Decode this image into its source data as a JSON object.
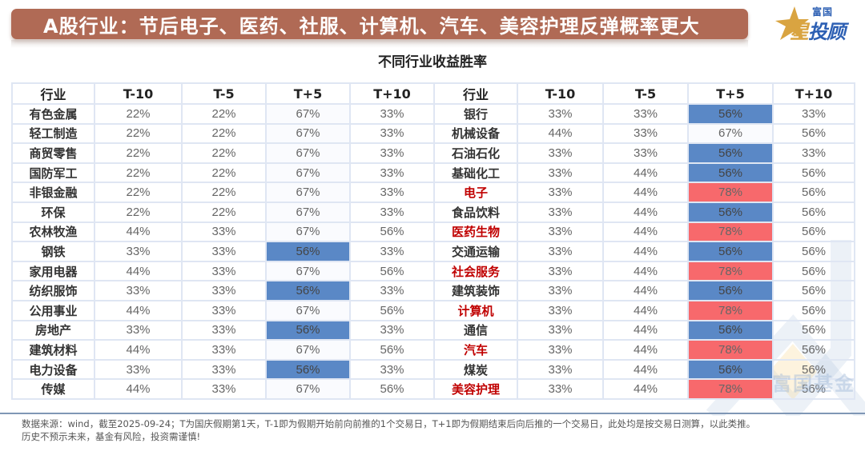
{
  "banner": {
    "title": "A股行业：节后电子、医药、社服、计算机、汽车、美容护理反弹概率更大"
  },
  "logo": {
    "top": "富国",
    "main_gold": "星",
    "main_blue": "投顾"
  },
  "watermark": {
    "text": "富国基金"
  },
  "colors": {
    "banner": "#b06a55",
    "blue_cell": "#5a88c6",
    "red_cell": "#f7696c",
    "highlight_text": "#c00000",
    "logo_blue": "#2c5fb3",
    "logo_gold": "#d9a441"
  },
  "footer": {
    "line1": "数据来源：wind，截至2025-09-24；T为国庆假期第1天，T-1即为假期开始前向前推的1个交易日，T+1即为假期结束后向后推的一个交易日，此处均是按交易日测算，以此类推。",
    "line2": "历史不预示未来，基金有风险，投资需谨慎!"
  },
  "chart_data": {
    "type": "table",
    "title": "不同行业收益胜率",
    "columns": [
      "行业",
      "T-10",
      "T-5",
      "T+5",
      "T+10"
    ],
    "legend": {
      "blue": "T+5 = 56%",
      "red": "T+5 = 78% (highlighted industries)"
    },
    "left": [
      {
        "industry": "有色金属",
        "values": [
          "22%",
          "22%",
          "67%",
          "33%"
        ],
        "t5": "light"
      },
      {
        "industry": "轻工制造",
        "values": [
          "22%",
          "22%",
          "67%",
          "33%"
        ],
        "t5": "light"
      },
      {
        "industry": "商贸零售",
        "values": [
          "22%",
          "22%",
          "67%",
          "33%"
        ],
        "t5": "light"
      },
      {
        "industry": "国防军工",
        "values": [
          "22%",
          "22%",
          "67%",
          "33%"
        ],
        "t5": "light"
      },
      {
        "industry": "非银金融",
        "values": [
          "22%",
          "22%",
          "67%",
          "33%"
        ],
        "t5": "light"
      },
      {
        "industry": "环保",
        "values": [
          "22%",
          "22%",
          "67%",
          "33%"
        ],
        "t5": "light"
      },
      {
        "industry": "农林牧渔",
        "values": [
          "44%",
          "33%",
          "67%",
          "56%"
        ],
        "t5": "light"
      },
      {
        "industry": "钢铁",
        "values": [
          "33%",
          "33%",
          "56%",
          "33%"
        ],
        "t5": "blue"
      },
      {
        "industry": "家用电器",
        "values": [
          "44%",
          "33%",
          "67%",
          "56%"
        ],
        "t5": "light"
      },
      {
        "industry": "纺织服饰",
        "values": [
          "33%",
          "33%",
          "56%",
          "33%"
        ],
        "t5": "blue"
      },
      {
        "industry": "公用事业",
        "values": [
          "44%",
          "33%",
          "67%",
          "56%"
        ],
        "t5": "light"
      },
      {
        "industry": "房地产",
        "values": [
          "33%",
          "33%",
          "56%",
          "33%"
        ],
        "t5": "blue"
      },
      {
        "industry": "建筑材料",
        "values": [
          "44%",
          "33%",
          "67%",
          "56%"
        ],
        "t5": "light"
      },
      {
        "industry": "电力设备",
        "values": [
          "33%",
          "33%",
          "56%",
          "33%"
        ],
        "t5": "blue"
      },
      {
        "industry": "传媒",
        "values": [
          "44%",
          "33%",
          "67%",
          "56%"
        ],
        "t5": "light"
      }
    ],
    "right": [
      {
        "industry": "银行",
        "values": [
          "33%",
          "33%",
          "56%",
          "33%"
        ],
        "t5": "blue",
        "highlight": false
      },
      {
        "industry": "机械设备",
        "values": [
          "44%",
          "33%",
          "67%",
          "56%"
        ],
        "t5": "light",
        "highlight": false
      },
      {
        "industry": "石油石化",
        "values": [
          "33%",
          "33%",
          "56%",
          "33%"
        ],
        "t5": "blue",
        "highlight": false
      },
      {
        "industry": "基础化工",
        "values": [
          "33%",
          "44%",
          "56%",
          "56%"
        ],
        "t5": "blue",
        "highlight": false
      },
      {
        "industry": "电子",
        "values": [
          "33%",
          "44%",
          "78%",
          "56%"
        ],
        "t5": "red",
        "highlight": true
      },
      {
        "industry": "食品饮料",
        "values": [
          "33%",
          "44%",
          "56%",
          "56%"
        ],
        "t5": "blue",
        "highlight": false
      },
      {
        "industry": "医药生物",
        "values": [
          "33%",
          "44%",
          "78%",
          "56%"
        ],
        "t5": "red",
        "highlight": true
      },
      {
        "industry": "交通运输",
        "values": [
          "33%",
          "44%",
          "56%",
          "56%"
        ],
        "t5": "blue",
        "highlight": false
      },
      {
        "industry": "社会服务",
        "values": [
          "33%",
          "44%",
          "78%",
          "56%"
        ],
        "t5": "red",
        "highlight": true
      },
      {
        "industry": "建筑装饰",
        "values": [
          "33%",
          "44%",
          "56%",
          "56%"
        ],
        "t5": "blue",
        "highlight": false
      },
      {
        "industry": "计算机",
        "values": [
          "33%",
          "44%",
          "78%",
          "56%"
        ],
        "t5": "red",
        "highlight": true
      },
      {
        "industry": "通信",
        "values": [
          "33%",
          "44%",
          "56%",
          "56%"
        ],
        "t5": "blue",
        "highlight": false
      },
      {
        "industry": "汽车",
        "values": [
          "33%",
          "44%",
          "78%",
          "56%"
        ],
        "t5": "red",
        "highlight": true
      },
      {
        "industry": "煤炭",
        "values": [
          "33%",
          "44%",
          "56%",
          "56%"
        ],
        "t5": "blue",
        "highlight": false
      },
      {
        "industry": "美容护理",
        "values": [
          "33%",
          "44%",
          "78%",
          "56%"
        ],
        "t5": "red",
        "highlight": true
      }
    ]
  }
}
